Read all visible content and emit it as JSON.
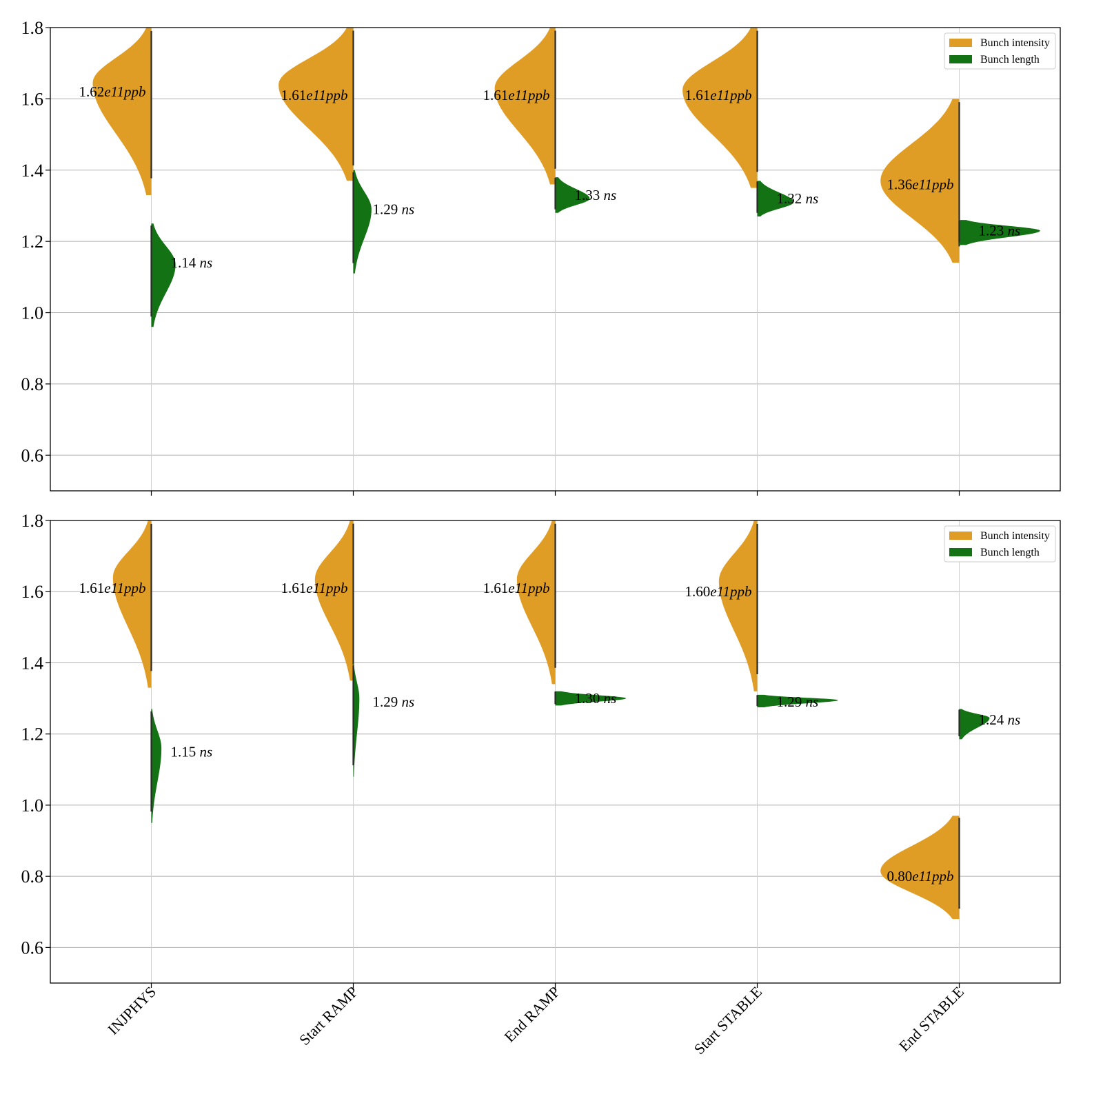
{
  "chart_data": {
    "type": "violin",
    "categories": [
      "INJPHYS",
      "Start RAMP",
      "End RAMP",
      "Start STABLE",
      "End STABLE"
    ],
    "ylim": [
      0.5,
      1.8
    ],
    "yticks": [
      0.6,
      0.8,
      1.0,
      1.2,
      1.4,
      1.6,
      1.8
    ],
    "ytick_labels": [
      "0.6",
      "0.8",
      "1.0",
      "1.2",
      "1.4",
      "1.6",
      "1.8"
    ],
    "grid": "horizontal",
    "legend_placement": "top-right",
    "legend": [
      {
        "label": "Bunch intensity",
        "color": "#E09D25"
      },
      {
        "label": "Bunch length",
        "color": "#137213"
      }
    ],
    "colors": {
      "intensity": "#E09D25",
      "length": "#137213",
      "points": "#2a2a2a",
      "grid": "#b0b0b0"
    },
    "panels": [
      {
        "name": "top",
        "series": [
          {
            "name": "Bunch intensity",
            "side": "left",
            "medians": [
              1.62,
              1.61,
              1.61,
              1.61,
              1.36
            ],
            "annotations": [
              {
                "value": "1.62",
                "exp": "e11",
                "unit": "ppb"
              },
              {
                "value": "1.61",
                "exp": "e11",
                "unit": "ppb"
              },
              {
                "value": "1.61",
                "exp": "e11",
                "unit": "ppb"
              },
              {
                "value": "1.61",
                "exp": "e11",
                "unit": "ppb"
              },
              {
                "value": "1.36",
                "exp": "e11",
                "unit": "ppb"
              }
            ],
            "peak": [
              1.645,
              1.64,
              1.63,
              1.625,
              1.37
            ],
            "range": [
              [
                1.33,
                1.8
              ],
              [
                1.37,
                1.8
              ],
              [
                1.36,
                1.8
              ],
              [
                1.35,
                1.8
              ],
              [
                1.14,
                1.6
              ]
            ],
            "width_rel": [
              0.29,
              0.37,
              0.3,
              0.37,
              0.39
            ]
          },
          {
            "name": "Bunch length",
            "side": "right",
            "medians": [
              1.14,
              1.29,
              1.33,
              1.32,
              1.23
            ],
            "annotations": [
              {
                "value": "1.14",
                "unit": "ns"
              },
              {
                "value": "1.29",
                "unit": "ns"
              },
              {
                "value": "1.33",
                "unit": "ns"
              },
              {
                "value": "1.32",
                "unit": "ns"
              },
              {
                "value": "1.23",
                "unit": "ns"
              }
            ],
            "peak": [
              1.135,
              1.29,
              1.32,
              1.31,
              1.23
            ],
            "range": [
              [
                0.96,
                1.25
              ],
              [
                1.11,
                1.4
              ],
              [
                1.28,
                1.38
              ],
              [
                1.27,
                1.37
              ],
              [
                1.19,
                1.26
              ]
            ],
            "width_rel": [
              0.12,
              0.09,
              0.17,
              0.18,
              0.4
            ]
          }
        ]
      },
      {
        "name": "bottom",
        "series": [
          {
            "name": "Bunch intensity",
            "side": "left",
            "medians": [
              1.61,
              1.61,
              1.61,
              1.6,
              0.8
            ],
            "annotations": [
              {
                "value": "1.61",
                "exp": "e11",
                "unit": "ppb"
              },
              {
                "value": "1.61",
                "exp": "e11",
                "unit": "ppb"
              },
              {
                "value": "1.61",
                "exp": "e11",
                "unit": "ppb"
              },
              {
                "value": "1.60",
                "exp": "e11",
                "unit": "ppb"
              },
              {
                "value": "0.80",
                "exp": "e11",
                "unit": "ppb"
              }
            ],
            "peak": [
              1.64,
              1.635,
              1.635,
              1.63,
              0.815
            ],
            "range": [
              [
                1.33,
                1.8
              ],
              [
                1.35,
                1.8
              ],
              [
                1.34,
                1.8
              ],
              [
                1.32,
                1.8
              ],
              [
                0.68,
                0.97
              ]
            ],
            "width_rel": [
              0.19,
              0.19,
              0.19,
              0.19,
              0.39
            ]
          },
          {
            "name": "Bunch length",
            "side": "right",
            "medians": [
              1.15,
              1.29,
              1.3,
              1.29,
              1.24
            ],
            "annotations": [
              {
                "value": "1.15",
                "unit": "ns"
              },
              {
                "value": "1.29",
                "unit": "ns"
              },
              {
                "value": "1.30",
                "unit": "ns"
              },
              {
                "value": "1.29",
                "unit": "ns"
              },
              {
                "value": "1.24",
                "unit": "ns"
              }
            ],
            "peak": [
              1.16,
              1.3,
              1.3,
              1.295,
              1.245
            ],
            "range": [
              [
                0.95,
                1.27
              ],
              [
                1.08,
                1.4
              ],
              [
                1.28,
                1.32
              ],
              [
                1.275,
                1.31
              ],
              [
                1.185,
                1.27
              ]
            ],
            "width_rel": [
              0.05,
              0.03,
              0.35,
              0.4,
              0.15
            ]
          }
        ]
      }
    ]
  }
}
